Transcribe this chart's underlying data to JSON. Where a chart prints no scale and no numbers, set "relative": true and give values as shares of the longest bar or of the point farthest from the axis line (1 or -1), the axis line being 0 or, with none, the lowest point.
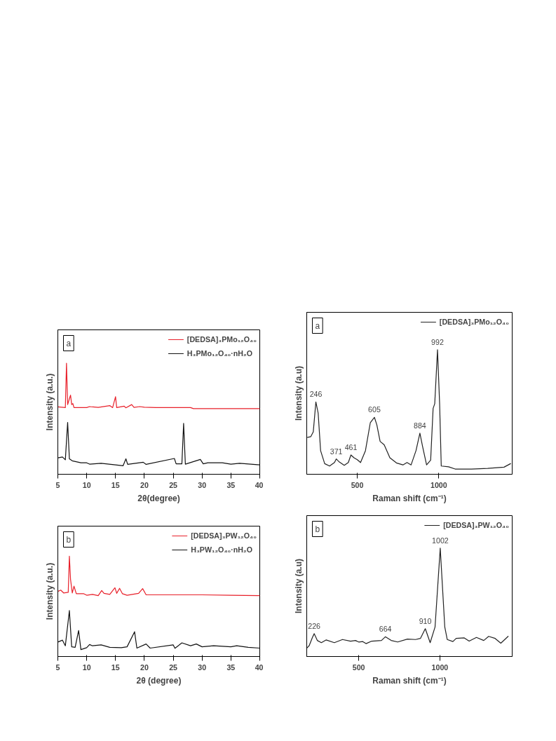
{
  "chart_data": [
    {
      "type": "line",
      "xlabel": "2θ(degree)",
      "ylabel": "Intensity (a.u.)",
      "xlim": [
        5,
        40
      ],
      "xticks": [
        5,
        10,
        15,
        20,
        25,
        30,
        35,
        40
      ],
      "relative": true,
      "grid": false,
      "legend": "top right",
      "marker": "none",
      "line_style": "solid",
      "annotations": [
        "a"
      ],
      "series": [
        {
          "name": "[DEDSA]₃PMo₁₂O₄₀",
          "color": "#e8202a",
          "x": [
            5,
            6.3,
            6.5,
            6.7,
            7.0,
            7.2,
            7.4,
            7.6,
            7.8,
            10,
            10.5,
            11,
            12,
            14,
            14.5,
            15,
            15.2,
            16.5,
            16.8,
            17.8,
            18.2,
            19.2,
            20,
            22,
            25,
            28,
            28.5,
            40
          ],
          "values": [
            0.606,
            0.6,
            1.0,
            0.627,
            0.68,
            0.712,
            0.627,
            0.636,
            0.6,
            0.6,
            0.609,
            0.606,
            0.602,
            0.618,
            0.6,
            0.698,
            0.6,
            0.613,
            0.598,
            0.627,
            0.602,
            0.609,
            0.604,
            0.6,
            0.6,
            0.6,
            0.591,
            0.591
          ]
        },
        {
          "name": "H₃PMo₁₂O₄₀·nH₂O",
          "color": "#111111",
          "x": [
            5,
            5.8,
            6.3,
            6.7,
            7.0,
            7.5,
            9,
            10,
            10.5,
            12.5,
            15,
            16.3,
            16.8,
            17.1,
            19.8,
            20.3,
            25.2,
            25.5,
            26.5,
            26.8,
            27.1,
            29.7,
            30.2,
            31,
            33.5,
            35,
            36.5,
            40
          ],
          "values": [
            0.147,
            0.155,
            0.13,
            0.467,
            0.139,
            0.121,
            0.103,
            0.103,
            0.091,
            0.098,
            0.085,
            0.076,
            0.139,
            0.089,
            0.108,
            0.089,
            0.142,
            0.094,
            0.094,
            0.458,
            0.091,
            0.133,
            0.094,
            0.103,
            0.103,
            0.091,
            0.098,
            0.085
          ]
        }
      ]
    },
    {
      "type": "line",
      "xlabel": "2θ (degree)",
      "ylabel": "Intensity (a.u.)",
      "xlim": [
        5,
        40
      ],
      "xticks": [
        5,
        10,
        15,
        20,
        25,
        30,
        35,
        40
      ],
      "relative": true,
      "grid": false,
      "legend": "top right",
      "marker": "none",
      "line_style": "solid",
      "annotations": [
        "b"
      ],
      "series": [
        {
          "name": "[DEDSA]₃PW₁₂O₄₀",
          "color": "#e8202a",
          "x": [
            5,
            5.5,
            6,
            6.8,
            7.0,
            7.2,
            7.5,
            7.8,
            8.2,
            9.5,
            10,
            11,
            12,
            12.6,
            13,
            14,
            14.9,
            15.2,
            15.7,
            16.2,
            17,
            19,
            19.7,
            20.3,
            25,
            30,
            35,
            40
          ],
          "values": [
            0.649,
            0.662,
            0.634,
            0.64,
            1.0,
            0.77,
            0.634,
            0.701,
            0.626,
            0.626,
            0.611,
            0.62,
            0.607,
            0.658,
            0.63,
            0.62,
            0.686,
            0.63,
            0.68,
            0.626,
            0.611,
            0.63,
            0.677,
            0.615,
            0.615,
            0.615,
            0.611,
            0.607
          ]
        },
        {
          "name": "H₃PW₁₂O₄₀·nH₂O",
          "color": "#111111",
          "x": [
            5,
            5.8,
            6.3,
            7.0,
            7.4,
            8.0,
            8.6,
            9.0,
            10.0,
            10.5,
            11,
            12.5,
            14,
            16,
            17,
            18.3,
            18.7,
            20.3,
            21,
            25,
            25.3,
            26.5,
            28,
            29,
            30,
            32,
            35,
            36,
            38,
            40
          ],
          "values": [
            0.144,
            0.163,
            0.107,
            0.458,
            0.097,
            0.092,
            0.26,
            0.069,
            0.088,
            0.12,
            0.107,
            0.116,
            0.092,
            0.088,
            0.097,
            0.247,
            0.084,
            0.125,
            0.084,
            0.116,
            0.082,
            0.136,
            0.107,
            0.125,
            0.097,
            0.107,
            0.097,
            0.107,
            0.092,
            0.084
          ]
        }
      ]
    },
    {
      "type": "line",
      "xlabel": "Raman shift (cm⁻¹)",
      "ylabel": "Intensity (a.u)",
      "xlim": [
        190,
        1450
      ],
      "xticks": [
        500,
        1000
      ],
      "relative": true,
      "grid": false,
      "legend": "top right",
      "marker": "none",
      "line_style": "solid",
      "annotations": [
        "a",
        {
          "text": "246",
          "x": 246,
          "y": 0.581
        },
        {
          "text": "371",
          "x": 371,
          "y": 0.123
        },
        {
          "text": "461",
          "x": 461,
          "y": 0.155
        },
        {
          "text": "605",
          "x": 605,
          "y": 0.457
        },
        {
          "text": "884",
          "x": 884,
          "y": 0.33
        },
        {
          "text": "992",
          "x": 992,
          "y": 1.0
        }
      ],
      "series": [
        {
          "name": "[DEDSA]₃PMo₁₂O₄₀",
          "color": "#222222",
          "x": [
            195,
            215,
            230,
            246,
            260,
            275,
            300,
            330,
            360,
            371,
            390,
            420,
            445,
            461,
            480,
            500,
            520,
            550,
            580,
            605,
            620,
            640,
            665,
            700,
            740,
            780,
            805,
            830,
            860,
            884,
            900,
            925,
            950,
            965,
            975,
            992,
            1005,
            1015,
            1060,
            1100,
            1200,
            1300,
            1400,
            1440
          ],
          "values": [
            0.296,
            0.302,
            0.34,
            0.581,
            0.491,
            0.189,
            0.085,
            0.066,
            0.094,
            0.123,
            0.098,
            0.072,
            0.094,
            0.155,
            0.132,
            0.117,
            0.094,
            0.189,
            0.415,
            0.457,
            0.396,
            0.264,
            0.236,
            0.132,
            0.091,
            0.075,
            0.094,
            0.075,
            0.189,
            0.33,
            0.226,
            0.075,
            0.113,
            0.528,
            0.566,
            1.0,
            0.566,
            0.066,
            0.06,
            0.042,
            0.042,
            0.047,
            0.057,
            0.085
          ]
        }
      ]
    },
    {
      "type": "line",
      "xlabel": "Raman shift (cm⁻¹)",
      "ylabel": "Intensity (a.u)",
      "xlim": [
        180,
        1445
      ],
      "xticks": [
        500,
        1000
      ],
      "relative": true,
      "grid": false,
      "legend": "top right",
      "marker": "none",
      "line_style": "solid",
      "annotations": [
        "b",
        {
          "text": "226",
          "x": 226,
          "y": 0.211
        },
        {
          "text": "664",
          "x": 664,
          "y": 0.182
        },
        {
          "text": "910",
          "x": 910,
          "y": 0.257
        },
        {
          "text": "1002",
          "x": 1002,
          "y": 1.0
        }
      ],
      "series": [
        {
          "name": "[DEDSA]₃PW₁₂O₄₀",
          "color": "#222222",
          "x": [
            182,
            195,
            215,
            226,
            245,
            270,
            300,
            350,
            400,
            450,
            480,
            500,
            525,
            545,
            580,
            640,
            664,
            700,
            740,
            800,
            850,
            880,
            910,
            940,
            970,
            1002,
            1030,
            1045,
            1080,
            1100,
            1150,
            1180,
            1225,
            1270,
            1300,
            1340,
            1375,
            1420
          ],
          "values": [
            0.08,
            0.1,
            0.176,
            0.211,
            0.148,
            0.128,
            0.153,
            0.128,
            0.157,
            0.142,
            0.148,
            0.134,
            0.138,
            0.119,
            0.142,
            0.148,
            0.182,
            0.148,
            0.134,
            0.161,
            0.157,
            0.167,
            0.257,
            0.128,
            0.272,
            1.0,
            0.272,
            0.157,
            0.138,
            0.167,
            0.172,
            0.142,
            0.176,
            0.148,
            0.186,
            0.167,
            0.123,
            0.186
          ]
        }
      ]
    }
  ]
}
